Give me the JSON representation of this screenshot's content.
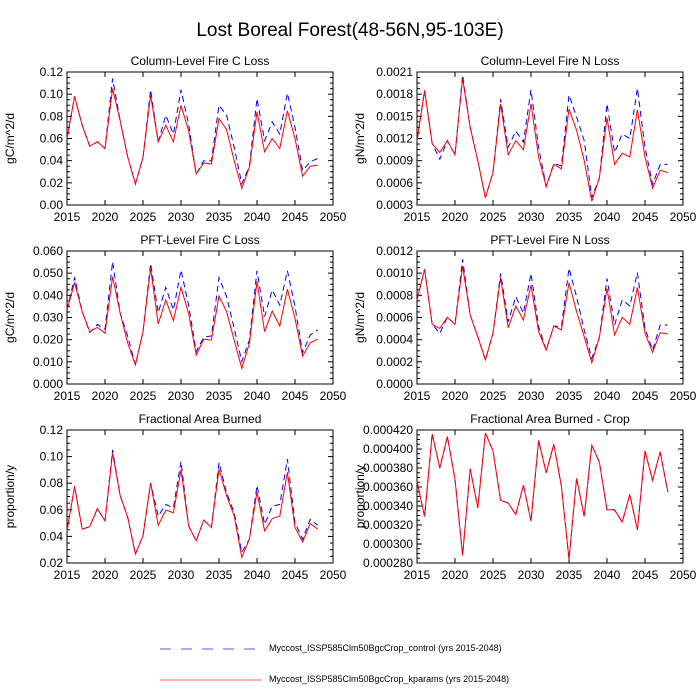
{
  "title": "Lost Boreal Forest(48-56N,95-103E)",
  "legend": [
    {
      "label": "Myccost_ISSP585Clm50BgcCrop_control (yrs 2015-2048)",
      "color": "#0000ff",
      "style": "dashed"
    },
    {
      "label": "Myccost_ISSP585Clm50BgcCrop_kparams (yrs 2015-2048)",
      "color": "#ff0000",
      "style": "solid"
    }
  ],
  "chart_data": [
    {
      "type": "line",
      "title": "Column-Level Fire C Loss",
      "ylabel": "gC/m^2/d",
      "xlabel": "",
      "xlim": [
        2015,
        2050
      ],
      "xticks": [
        "2015",
        "2020",
        "2025",
        "2030",
        "2035",
        "2040",
        "2045",
        "2050"
      ],
      "ylim": [
        0,
        0.12
      ],
      "yticks": [
        "0.00",
        "0.02",
        "0.04",
        "0.06",
        "0.08",
        "0.10",
        "0.12"
      ],
      "x_start": 2015,
      "series": [
        {
          "name": "control",
          "values": [
            0.06,
            0.098,
            0.072,
            0.053,
            0.057,
            0.051,
            0.114,
            0.076,
            0.043,
            0.019,
            0.043,
            0.104,
            0.057,
            0.081,
            0.064,
            0.104,
            0.073,
            0.028,
            0.04,
            0.04,
            0.09,
            0.081,
            0.052,
            0.019,
            0.035,
            0.096,
            0.058,
            0.075,
            0.064,
            0.101,
            0.07,
            0.031,
            0.039,
            0.042
          ]
        },
        {
          "name": "kparams",
          "values": [
            0.06,
            0.098,
            0.072,
            0.053,
            0.057,
            0.051,
            0.105,
            0.076,
            0.043,
            0.019,
            0.043,
            0.099,
            0.057,
            0.072,
            0.057,
            0.09,
            0.067,
            0.028,
            0.038,
            0.037,
            0.078,
            0.068,
            0.04,
            0.015,
            0.034,
            0.084,
            0.048,
            0.06,
            0.051,
            0.085,
            0.06,
            0.026,
            0.035,
            0.036
          ]
        }
      ]
    },
    {
      "type": "line",
      "title": "Column-Level Fire N Loss",
      "ylabel": "gN/m^2/d",
      "xlabel": "",
      "xlim": [
        2015,
        2050
      ],
      "xticks": [
        "2015",
        "2020",
        "2025",
        "2030",
        "2035",
        "2040",
        "2045",
        "2050"
      ],
      "ylim": [
        0.0003,
        0.0021
      ],
      "yticks": [
        "0.0003",
        "0.0006",
        "0.0009",
        "0.0012",
        "0.0015",
        "0.0018",
        "0.0021"
      ],
      "x_start": 2015,
      "series": [
        {
          "name": "control",
          "values": [
            0.00117,
            0.00185,
            0.00113,
            0.00092,
            0.00117,
            0.00098,
            0.00206,
            0.00135,
            0.0009,
            0.0004,
            0.00074,
            0.00173,
            0.00108,
            0.0013,
            0.00115,
            0.00186,
            0.00108,
            0.00055,
            0.00086,
            0.00083,
            0.00179,
            0.00149,
            0.00117,
            0.0004,
            0.00067,
            0.00167,
            0.00101,
            0.00126,
            0.0012,
            0.00188,
            0.00108,
            0.00058,
            0.00085,
            0.00085
          ]
        },
        {
          "name": "kparams",
          "values": [
            0.00117,
            0.00185,
            0.00113,
            0.00101,
            0.00117,
            0.00098,
            0.00201,
            0.00135,
            0.0009,
            0.0004,
            0.00074,
            0.00167,
            0.00098,
            0.00117,
            0.00105,
            0.00167,
            0.00095,
            0.00055,
            0.00085,
            0.00079,
            0.0016,
            0.00131,
            0.0009,
            0.00035,
            0.00067,
            0.00148,
            0.00085,
            0.001,
            0.00095,
            0.00159,
            0.00095,
            0.00053,
            0.00077,
            0.00074
          ]
        }
      ]
    },
    {
      "type": "line",
      "title": "PFT-Level Fire C Loss",
      "ylabel": "gC/m^2/d",
      "xlabel": "",
      "xlim": [
        2015,
        2050
      ],
      "xticks": [
        "2015",
        "2020",
        "2025",
        "2030",
        "2035",
        "2040",
        "2045",
        "2050"
      ],
      "ylim": [
        0,
        0.06
      ],
      "yticks": [
        "0.000",
        "0.010",
        "0.020",
        "0.030",
        "0.040",
        "0.050",
        "0.060"
      ],
      "x_start": 2015,
      "series": [
        {
          "name": "control",
          "values": [
            0.0334,
            0.0481,
            0.0326,
            0.0232,
            0.0269,
            0.0247,
            0.0552,
            0.0319,
            0.0214,
            0.0086,
            0.0236,
            0.0544,
            0.0322,
            0.0436,
            0.0334,
            0.0514,
            0.0356,
            0.0146,
            0.0211,
            0.0217,
            0.048,
            0.0394,
            0.0251,
            0.0101,
            0.0198,
            0.0511,
            0.0304,
            0.0424,
            0.0356,
            0.0511,
            0.0349,
            0.0141,
            0.0221,
            0.0244
          ]
        },
        {
          "name": "kparams",
          "values": [
            0.0334,
            0.0457,
            0.0326,
            0.0236,
            0.0256,
            0.0229,
            0.0484,
            0.0319,
            0.0183,
            0.0086,
            0.0236,
            0.0522,
            0.0271,
            0.0379,
            0.0286,
            0.0436,
            0.0319,
            0.0131,
            0.0202,
            0.0198,
            0.0397,
            0.0326,
            0.0198,
            0.0071,
            0.0183,
            0.0462,
            0.0236,
            0.0329,
            0.0262,
            0.0427,
            0.0296,
            0.0126,
            0.0186,
            0.0202
          ]
        }
      ]
    },
    {
      "type": "line",
      "title": "PFT-Level Fire N Loss",
      "ylabel": "gN/m^2/d",
      "xlabel": "",
      "xlim": [
        2015,
        2050
      ],
      "xticks": [
        "2015",
        "2020",
        "2025",
        "2030",
        "2035",
        "2040",
        "2045",
        "2050"
      ],
      "ylim": [
        0,
        0.0012
      ],
      "yticks": [
        "0.0000",
        "0.0002",
        "0.0004",
        "0.0006",
        "0.0008",
        "0.0010",
        "0.0012"
      ],
      "x_start": 2015,
      "series": [
        {
          "name": "control",
          "values": [
            0.000758,
            0.001035,
            0.000538,
            0.000457,
            0.000602,
            0.000538,
            0.001125,
            0.000623,
            0.000427,
            0.000217,
            0.000457,
            0.000998,
            0.000562,
            0.000788,
            0.000638,
            0.000998,
            0.000517,
            0.000307,
            0.000523,
            0.000517,
            0.001044,
            0.000788,
            0.000487,
            0.000232,
            0.000421,
            0.000953,
            0.000532,
            0.000758,
            0.000704,
            0.001005,
            0.000502,
            0.000307,
            0.000532,
            0.000532
          ]
        },
        {
          "name": "kparams",
          "values": [
            0.000758,
            0.001035,
            0.000538,
            0.000502,
            0.000602,
            0.000538,
            0.001065,
            0.000623,
            0.000427,
            0.000217,
            0.000457,
            0.000959,
            0.000508,
            0.000704,
            0.000577,
            0.000893,
            0.000472,
            0.000307,
            0.000523,
            0.000487,
            0.000914,
            0.000653,
            0.000427,
            0.000192,
            0.000421,
            0.000863,
            0.000442,
            0.000602,
            0.000538,
            0.000872,
            0.000457,
            0.000286,
            0.000463,
            0.000451
          ]
        }
      ]
    },
    {
      "type": "line",
      "title": "Fractional Area Burned",
      "ylabel": "proportion/y",
      "xlabel": "",
      "xlim": [
        2015,
        2050
      ],
      "xticks": [
        "2015",
        "2020",
        "2025",
        "2030",
        "2035",
        "2040",
        "2045",
        "2050"
      ],
      "ylim": [
        0.02,
        0.12
      ],
      "yticks": [
        "0.02",
        "0.04",
        "0.06",
        "0.08",
        "0.10",
        "0.12"
      ],
      "x_start": 2015,
      "series": [
        {
          "name": "control",
          "values": [
            0.0441,
            0.0777,
            0.0454,
            0.0474,
            0.061,
            0.0516,
            0.1051,
            0.0707,
            0.0541,
            0.0267,
            0.0404,
            0.0802,
            0.0553,
            0.064,
            0.0615,
            0.0964,
            0.0479,
            0.0367,
            0.0523,
            0.0466,
            0.0956,
            0.0727,
            0.0578,
            0.028,
            0.0379,
            0.0782,
            0.0491,
            0.0628,
            0.064,
            0.0981,
            0.0503,
            0.0379,
            0.0528,
            0.0484
          ]
        },
        {
          "name": "kparams",
          "values": [
            0.0441,
            0.0777,
            0.0454,
            0.0474,
            0.061,
            0.0516,
            0.1026,
            0.0707,
            0.0541,
            0.0267,
            0.0404,
            0.0802,
            0.0484,
            0.0598,
            0.0578,
            0.0901,
            0.0479,
            0.0367,
            0.0523,
            0.0466,
            0.0906,
            0.0707,
            0.0553,
            0.0242,
            0.0379,
            0.0732,
            0.0441,
            0.0533,
            0.0553,
            0.0882,
            0.0466,
            0.0359,
            0.0496,
            0.0454
          ]
        }
      ]
    },
    {
      "type": "line",
      "title": "Fractional Area Burned - Crop",
      "ylabel": "proportion/y",
      "xlabel": "",
      "xlim": [
        2015,
        2050
      ],
      "xticks": [
        "2015",
        "2020",
        "2025",
        "2030",
        "2035",
        "2040",
        "2045",
        "2050"
      ],
      "ylim": [
        0.00028,
        0.00042
      ],
      "yticks": [
        "0.000280",
        "0.000300",
        "0.000320",
        "0.000340",
        "0.000360",
        "0.000380",
        "0.000400",
        "0.000420"
      ],
      "x_start": 2015,
      "series": [
        {
          "name": "control",
          "values": [
            0.000366,
            0.000329,
            0.000416,
            0.00038,
            0.000413,
            0.000368,
            0.000288,
            0.000379,
            0.000338,
            0.000417,
            0.000398,
            0.000346,
            0.000343,
            0.000331,
            0.000362,
            0.000324,
            0.000409,
            0.000375,
            0.000405,
            0.000361,
            0.000284,
            0.000369,
            0.000329,
            0.000404,
            0.000386,
            0.000336,
            0.000336,
            0.000323,
            0.000352,
            0.000315,
            0.000398,
            0.000367,
            0.000397,
            0.000355
          ]
        },
        {
          "name": "kparams",
          "values": [
            0.000366,
            0.000329,
            0.000416,
            0.00038,
            0.000413,
            0.000368,
            0.000288,
            0.000379,
            0.000338,
            0.000417,
            0.000398,
            0.000346,
            0.000343,
            0.000331,
            0.000362,
            0.000324,
            0.000409,
            0.000375,
            0.000405,
            0.000361,
            0.000284,
            0.000369,
            0.000329,
            0.000404,
            0.000386,
            0.000336,
            0.000336,
            0.000323,
            0.000352,
            0.000315,
            0.000398,
            0.000367,
            0.000397,
            0.000355
          ]
        }
      ]
    }
  ]
}
